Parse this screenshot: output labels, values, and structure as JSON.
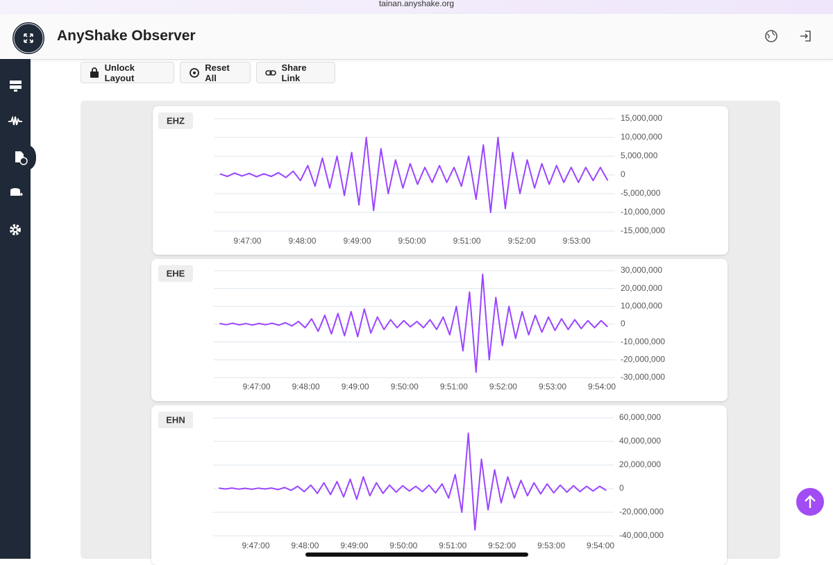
{
  "browser": {
    "url": "tainan.anyshake.org"
  },
  "header": {
    "title": "AnyShake Observer"
  },
  "toolbar": {
    "buttons": [
      "Unlock Layout",
      "Reset All",
      "Share Link"
    ]
  },
  "chart_data": [
    {
      "type": "line",
      "title": "EHZ",
      "color": "#9b45ff",
      "grid": true,
      "x": [
        35190,
        35198,
        35206,
        35214,
        35222,
        35230,
        35238,
        35246,
        35254,
        35262,
        35270,
        35278,
        35286,
        35294,
        35302,
        35310,
        35318,
        35326,
        35334,
        35342,
        35350,
        35358,
        35366,
        35374,
        35382,
        35390,
        35398,
        35406,
        35414,
        35422,
        35430,
        35438,
        35446,
        35454,
        35462,
        35470,
        35478,
        35486,
        35494,
        35502,
        35510,
        35518,
        35526,
        35534,
        35542,
        35550,
        35558,
        35566,
        35574,
        35582,
        35590,
        35598,
        35606,
        35614
      ],
      "values": [
        300000,
        -400000,
        500000,
        -300000,
        400000,
        -500000,
        300000,
        -400000,
        600000,
        -700000,
        1000000,
        -1500000,
        2500000,
        -3000000,
        4500000,
        -3500000,
        5000000,
        -5500000,
        6000000,
        -8000000,
        10000000,
        -9500000,
        7000000,
        -5000000,
        4000000,
        -3500000,
        3000000,
        -2500000,
        2000000,
        -2000000,
        2500000,
        -2000000,
        2000000,
        -3000000,
        5000000,
        -6500000,
        8000000,
        -10000000,
        10000000,
        -9000000,
        6000000,
        -5000000,
        4000000,
        -3500000,
        3000000,
        -2500000,
        2500000,
        -2000000,
        2000000,
        -2000000,
        2000000,
        -1500000,
        2000000,
        -1500000
      ],
      "xlim": [
        35184,
        35622
      ],
      "ylim": [
        -15000000,
        15000000
      ],
      "xticks": [
        {
          "value": 35220,
          "label": "9:47:00"
        },
        {
          "value": 35280,
          "label": "9:48:00"
        },
        {
          "value": 35340,
          "label": "9:49:00"
        },
        {
          "value": 35400,
          "label": "9:50:00"
        },
        {
          "value": 35460,
          "label": "9:51:00"
        },
        {
          "value": 35520,
          "label": "9:52:00"
        },
        {
          "value": 35580,
          "label": "9:53:00"
        }
      ],
      "yticks": [
        {
          "value": 15000000,
          "label": "15,000,000"
        },
        {
          "value": 10000000,
          "label": "10,000,000"
        },
        {
          "value": 5000000,
          "label": "5,000,000"
        },
        0,
        {
          "value": -5000000,
          "label": "-5,000,000"
        },
        {
          "value": -10000000,
          "label": "-10,000,000"
        },
        {
          "value": -15000000,
          "label": "-15,000,000"
        }
      ]
    },
    {
      "type": "line",
      "title": "EHE",
      "color": "#9b45ff",
      "grid": true,
      "x": [
        35175,
        35183,
        35191,
        35199,
        35207,
        35215,
        35223,
        35231,
        35239,
        35247,
        35255,
        35263,
        35271,
        35279,
        35287,
        35295,
        35303,
        35311,
        35319,
        35327,
        35335,
        35343,
        35351,
        35359,
        35367,
        35375,
        35383,
        35391,
        35399,
        35407,
        35415,
        35423,
        35431,
        35439,
        35447,
        35455,
        35463,
        35471,
        35479,
        35487,
        35495,
        35503,
        35511,
        35519,
        35527,
        35535,
        35543,
        35551,
        35559,
        35567,
        35575,
        35583,
        35591,
        35599,
        35607,
        35615,
        35623,
        35631,
        35639,
        35647
      ],
      "values": [
        400000,
        -300000,
        500000,
        -400000,
        300000,
        -500000,
        400000,
        -300000,
        500000,
        -600000,
        800000,
        -1000000,
        1500000,
        -2000000,
        3000000,
        -4000000,
        5000000,
        -5500000,
        6000000,
        -6500000,
        7000000,
        -7000000,
        8500000,
        -5000000,
        4000000,
        -3000000,
        2500000,
        -2000000,
        2000000,
        -1500000,
        1500000,
        -2000000,
        2500000,
        -3000000,
        4000000,
        -6000000,
        10000000,
        -15000000,
        18000000,
        -27000000,
        28000000,
        -20000000,
        15000000,
        -12000000,
        10000000,
        -8000000,
        7000000,
        -6000000,
        5000000,
        -4500000,
        4000000,
        -3500000,
        3000000,
        -3000000,
        2500000,
        -2500000,
        2000000,
        -2000000,
        2000000,
        -1500000
      ],
      "xlim": [
        35168,
        35656
      ],
      "ylim": [
        -30000000,
        30000000
      ],
      "xticks": [
        {
          "value": 35220,
          "label": "9:47:00"
        },
        {
          "value": 35280,
          "label": "9:48:00"
        },
        {
          "value": 35340,
          "label": "9:49:00"
        },
        {
          "value": 35400,
          "label": "9:50:00"
        },
        {
          "value": 35460,
          "label": "9:51:00"
        },
        {
          "value": 35520,
          "label": "9:52:00"
        },
        {
          "value": 35580,
          "label": "9:53:00"
        },
        {
          "value": 35640,
          "label": "9:54:00"
        }
      ],
      "yticks": [
        {
          "value": 30000000,
          "label": "30,000,000"
        },
        {
          "value": 20000000,
          "label": "20,000,000"
        },
        {
          "value": 10000000,
          "label": "10,000,000"
        },
        0,
        {
          "value": -10000000,
          "label": "-10,000,000"
        },
        {
          "value": -20000000,
          "label": "-20,000,000"
        },
        {
          "value": -30000000,
          "label": "-30,000,000"
        }
      ]
    },
    {
      "type": "line",
      "title": "EHN",
      "color": "#9b45ff",
      "grid": true,
      "x": [
        35175,
        35183,
        35191,
        35199,
        35207,
        35215,
        35223,
        35231,
        35239,
        35247,
        35255,
        35263,
        35271,
        35279,
        35287,
        35295,
        35303,
        35311,
        35319,
        35327,
        35335,
        35343,
        35351,
        35359,
        35367,
        35375,
        35383,
        35391,
        35399,
        35407,
        35415,
        35423,
        35431,
        35439,
        35447,
        35455,
        35463,
        35471,
        35479,
        35487,
        35495,
        35503,
        35511,
        35519,
        35527,
        35535,
        35543,
        35551,
        35559,
        35567,
        35575,
        35583,
        35591,
        35599,
        35607,
        35615,
        35623,
        35631,
        35639,
        35647
      ],
      "values": [
        400000,
        -300000,
        500000,
        -400000,
        300000,
        -500000,
        400000,
        -300000,
        500000,
        -800000,
        1000000,
        -1500000,
        2000000,
        -2500000,
        3000000,
        -4000000,
        5000000,
        -5000000,
        6000000,
        -7000000,
        8000000,
        -9000000,
        10000000,
        -6000000,
        5000000,
        -4000000,
        3000000,
        -3000000,
        2500000,
        -2000000,
        2000000,
        -2500000,
        3000000,
        -3500000,
        4000000,
        -8000000,
        12000000,
        -20000000,
        47000000,
        -35000000,
        25000000,
        -18000000,
        16000000,
        -12000000,
        10000000,
        -8000000,
        7000000,
        -6000000,
        5000000,
        -4500000,
        4000000,
        -3500000,
        3000000,
        -3000000,
        2500000,
        -2500000,
        2000000,
        -2000000,
        2000000,
        -1500000
      ],
      "xlim": [
        35168,
        35656
      ],
      "ylim": [
        -40000000,
        60000000
      ],
      "xticks": [
        {
          "value": 35220,
          "label": "9:47:00"
        },
        {
          "value": 35280,
          "label": "9:48:00"
        },
        {
          "value": 35340,
          "label": "9:49:00"
        },
        {
          "value": 35400,
          "label": "9:50:00"
        },
        {
          "value": 35460,
          "label": "9:51:00"
        },
        {
          "value": 35520,
          "label": "9:52:00"
        },
        {
          "value": 35580,
          "label": "9:53:00"
        },
        {
          "value": 35640,
          "label": "9:54:00"
        }
      ],
      "yticks": [
        {
          "value": 60000000,
          "label": "60,000,000"
        },
        {
          "value": 40000000,
          "label": "40,000,000"
        },
        {
          "value": 20000000,
          "label": "20,000,000"
        },
        0,
        {
          "value": -20000000,
          "label": "-20,000,000"
        },
        {
          "value": -40000000,
          "label": "-40,000,000"
        }
      ]
    }
  ]
}
